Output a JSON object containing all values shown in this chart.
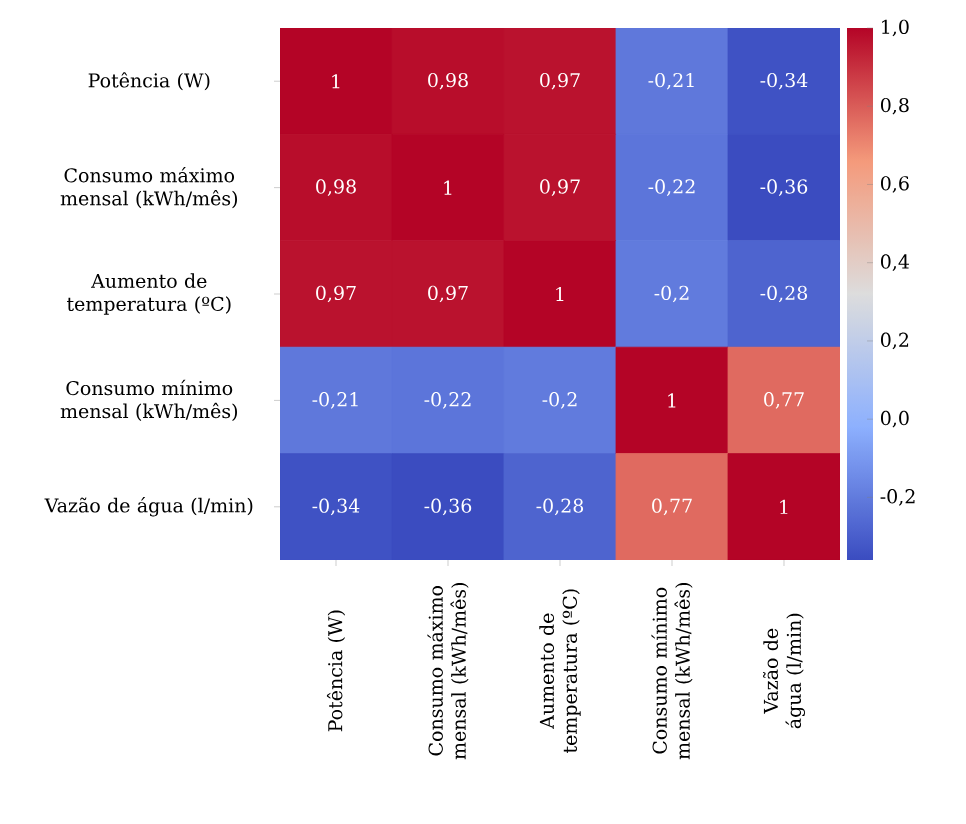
{
  "chart_data": {
    "type": "heatmap",
    "categories": [
      "Potência (W)",
      "Consumo máximo mensal (kWh/mês)",
      "Aumento de temperatura (ºC)",
      "Consumo mínimo mensal (kWh/mês)",
      "Vazão de água (l/min)"
    ],
    "y_categories": [
      "Potência (W)",
      "Consumo máximo mensal (kWh/mês)",
      "Aumento de temperatura (ºC)",
      "Consumo mínimo mensal (kWh/mês)",
      "Vazão de água (l/min)"
    ],
    "cells": [
      [
        1,
        0.98,
        0.97,
        -0.21,
        -0.34
      ],
      [
        0.98,
        1,
        0.97,
        -0.22,
        -0.36
      ],
      [
        0.97,
        0.97,
        1,
        -0.2,
        -0.28
      ],
      [
        -0.21,
        -0.22,
        -0.2,
        1,
        0.77
      ],
      [
        -0.34,
        -0.36,
        -0.28,
        0.77,
        1
      ]
    ],
    "cell_labels": [
      [
        "1",
        "0,98",
        "0,97",
        "-0,21",
        "-0,34"
      ],
      [
        "0,98",
        "1",
        "0,97",
        "-0,22",
        "-0,36"
      ],
      [
        "0,97",
        "0,97",
        "1",
        "-0,2",
        "-0,28"
      ],
      [
        "-0,21",
        "-0,22",
        "-0,2",
        "1",
        "0,77"
      ],
      [
        "-0,34",
        "-0,36",
        "-0,28",
        "0,77",
        "1"
      ]
    ],
    "clim": [
      -0.36,
      1.0
    ],
    "cticks": [
      {
        "value": -0.2,
        "label": "-0,2"
      },
      {
        "value": 0.0,
        "label": "0,0"
      },
      {
        "value": 0.2,
        "label": "0,2"
      },
      {
        "value": 0.4,
        "label": "0,4"
      },
      {
        "value": 0.6,
        "label": "0,6"
      },
      {
        "value": 0.8,
        "label": "0,8"
      },
      {
        "value": 1.0,
        "label": "1,0"
      }
    ]
  }
}
